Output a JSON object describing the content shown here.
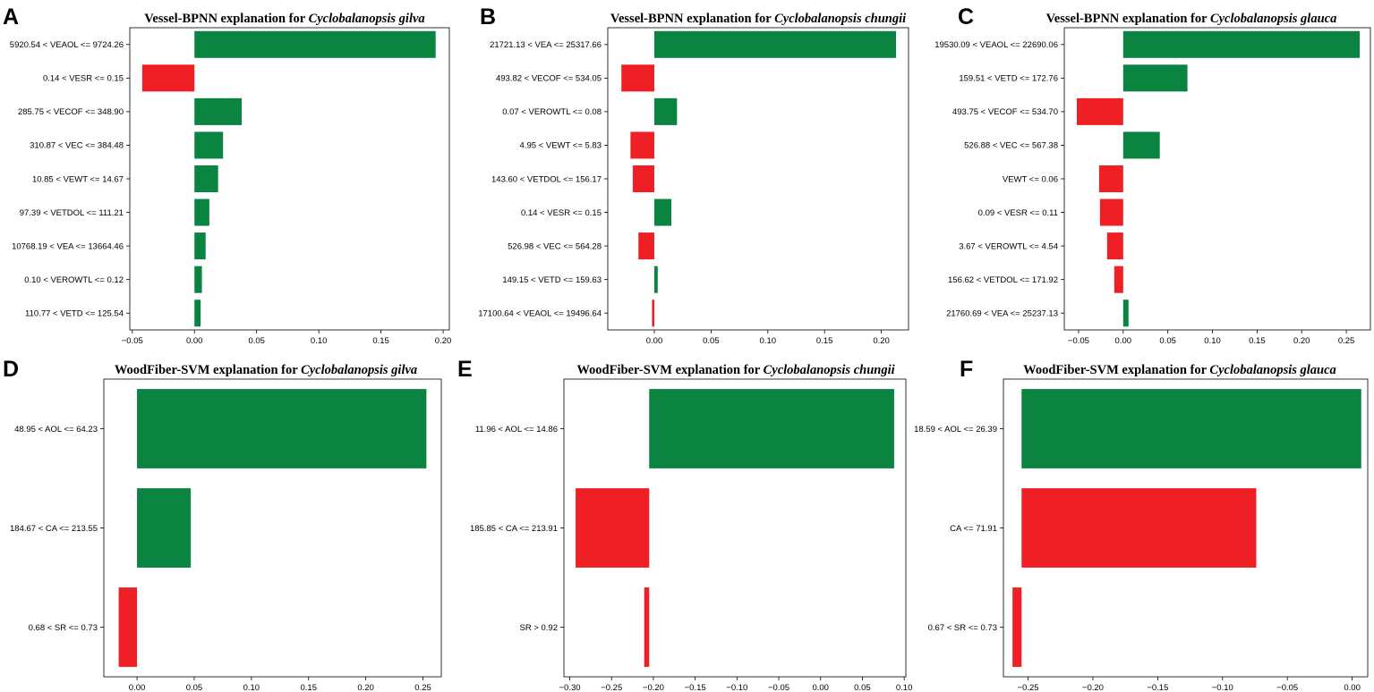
{
  "colors": {
    "positive": "#0b8442",
    "negative": "#ee2025"
  },
  "chart_data": [
    {
      "type": "bar",
      "panel": "A",
      "title_prefix": "Vessel-BPNN explanation for ",
      "species": "Cyclobalanopsis gilva",
      "categories": [
        "5920.54 < VEAOL <= 9724.26",
        "0.14 < VESR <= 0.15",
        "285.75 < VECOF <= 348.90",
        "310.87 < VEC <= 384.48",
        "10.85 < VEWT <= 14.67",
        "97.39 < VETDOL <= 111.21",
        "10768.19 < VEA <= 13664.46",
        "0.10 < VEROWTL <= 0.12",
        "110.77 < VETD <= 125.54"
      ],
      "values": [
        0.194,
        -0.042,
        0.038,
        0.023,
        0.019,
        0.012,
        0.009,
        0.006,
        0.005
      ],
      "xlim": [
        -0.052,
        0.205
      ],
      "xticks": [
        -0.05,
        0.0,
        0.05,
        0.1,
        0.15,
        0.2
      ],
      "xtick_labels": [
        "−0.05",
        "0.00",
        "0.05",
        "0.10",
        "0.15",
        "0.20"
      ]
    },
    {
      "type": "bar",
      "panel": "B",
      "title_prefix": "Vessel-BPNN explanation for ",
      "species": "Cyclobalanopsis chungii",
      "categories": [
        "21721.13 < VEA <= 25317.66",
        "493.82 < VECOF <= 534.05",
        "0.07 < VEROWTL <= 0.08",
        "4.95 < VEWT <= 5.83",
        "143.60 < VETDOL <= 156.17",
        "0.14 < VESR <= 0.15",
        "526.98 < VEC <= 564.28",
        "149.15 < VETD <= 159.63",
        "17100.64 < VEAOL <= 19496.64"
      ],
      "values": [
        0.213,
        -0.029,
        0.02,
        -0.021,
        -0.019,
        0.015,
        -0.014,
        0.003,
        -0.002
      ],
      "xlim": [
        -0.041,
        0.224
      ],
      "xticks": [
        0.0,
        0.05,
        0.1,
        0.15,
        0.2
      ],
      "xtick_labels": [
        "0.00",
        "0.05",
        "0.10",
        "0.15",
        "0.20"
      ]
    },
    {
      "type": "bar",
      "panel": "C",
      "title_prefix": "Vessel-BPNN explanation for ",
      "species": "Cyclobalanopsis glauca",
      "categories": [
        "19530.09 < VEAOL <= 22690.06",
        "159.51 < VETD <= 172.76",
        "493.75 < VECOF <= 534.70",
        "526.88 < VEC <= 567.38",
        "VEWT <= 0.06",
        "0.09 < VESR <= 0.11",
        "3.67 < VEROWTL <= 4.54",
        "156.62 < VETDOL <= 171.92",
        "21760.69 < VEA <= 25237.13"
      ],
      "values": [
        0.265,
        0.072,
        -0.052,
        0.041,
        -0.027,
        -0.026,
        -0.018,
        -0.01,
        0.006
      ],
      "xlim": [
        -0.066,
        0.277
      ],
      "xticks": [
        -0.05,
        0.0,
        0.05,
        0.1,
        0.15,
        0.2,
        0.25
      ],
      "xtick_labels": [
        "−0.05",
        "0.00",
        "0.05",
        "0.10",
        "0.15",
        "0.20",
        "0.25"
      ]
    },
    {
      "type": "bar",
      "panel": "D",
      "title_prefix": "WoodFiber-SVM explanation for ",
      "species": "Cyclobalanopsis gilva",
      "categories": [
        "48.95 < AOL <= 64.23",
        "184.67 < CA <= 213.55",
        "0.68 < SR <= 0.73"
      ],
      "values": [
        0.253,
        0.047,
        -0.016
      ],
      "xlim": [
        -0.029,
        0.266
      ],
      "xticks": [
        0.0,
        0.05,
        0.1,
        0.15,
        0.2,
        0.25
      ],
      "xtick_labels": [
        "0.00",
        "0.05",
        "0.10",
        "0.15",
        "0.20",
        "0.25"
      ]
    },
    {
      "type": "bar",
      "panel": "E",
      "title_prefix": "WoodFiber-SVM explanation for ",
      "species": "Cyclobalanopsis chungii",
      "bar_base": -0.205,
      "categories": [
        "11.96 < AOL <= 14.86",
        "185.85 < CA <= 213.91",
        "SR > 0.92"
      ],
      "values": [
        0.088,
        -0.293,
        -0.211
      ],
      "xlim": [
        -0.307,
        0.102
      ],
      "xticks": [
        -0.3,
        -0.25,
        -0.2,
        -0.15,
        -0.1,
        -0.05,
        0.0,
        0.05,
        0.1
      ],
      "xtick_labels": [
        "−0.30",
        "−0.25",
        "−0.20",
        "−0.15",
        "−0.10",
        "−0.05",
        "0.00",
        "0.05",
        "0.10"
      ]
    },
    {
      "type": "bar",
      "panel": "F",
      "title_prefix": "WoodFiber-SVM explanation for ",
      "species": "Cyclobalanopsis glauca",
      "bar_base": -0.255,
      "categories": [
        "18.59 < AOL <= 26.39",
        "CA <= 71.91",
        "0.67 < SR <= 0.73"
      ],
      "values": [
        0.007,
        -0.074,
        -0.262
      ],
      "xlim": [
        -0.269,
        0.012
      ],
      "xticks": [
        -0.25,
        -0.2,
        -0.15,
        -0.1,
        -0.05,
        0.0
      ],
      "xtick_labels": [
        "−0.25",
        "−0.20",
        "−0.15",
        "−0.10",
        "−0.05",
        "0.00"
      ]
    }
  ]
}
